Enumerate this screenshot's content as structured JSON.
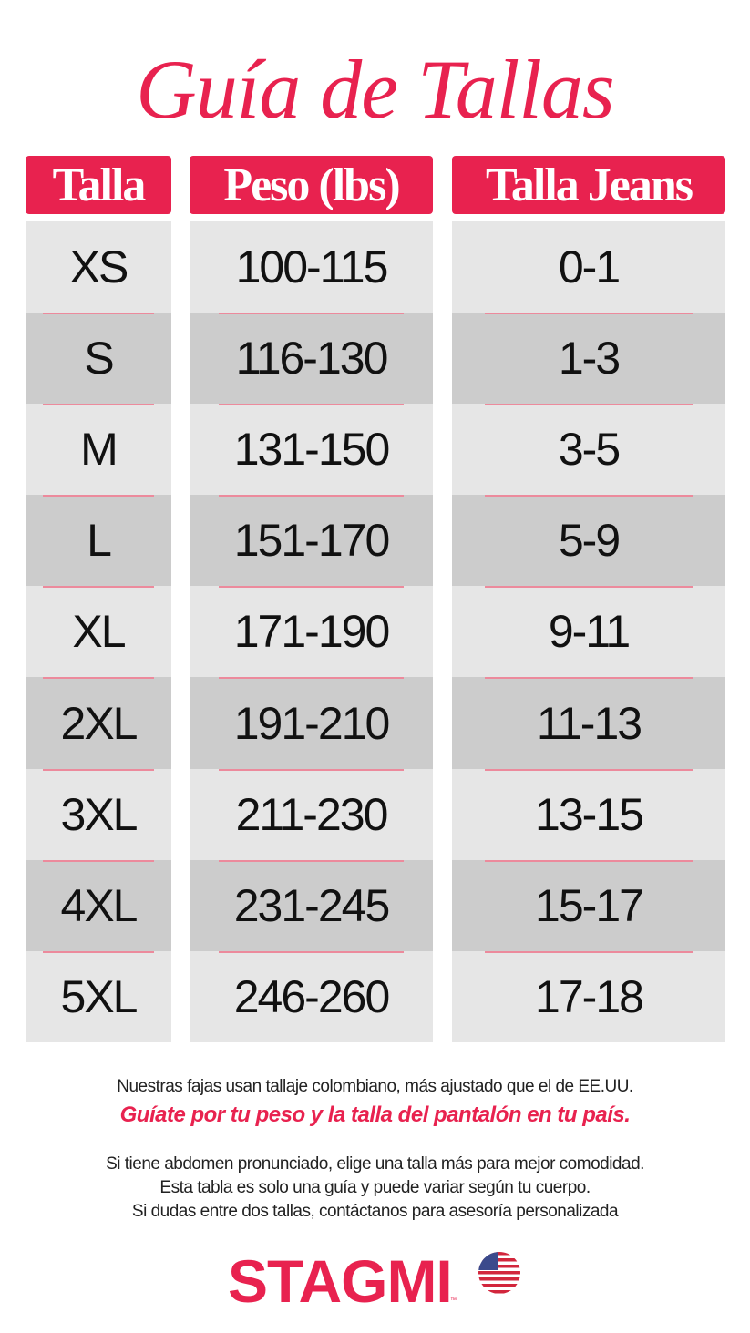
{
  "title": "Guía de Tallas",
  "colors": {
    "brand": "#e8224f",
    "row_light": "#e6e6e6",
    "row_dark": "#cccccc"
  },
  "headers": [
    "Talla",
    "Peso (lbs)",
    "Talla Jeans"
  ],
  "rows": [
    [
      "XS",
      "100-115",
      "0-1"
    ],
    [
      "S",
      "116-130",
      "1-3"
    ],
    [
      "M",
      "131-150",
      "3-5"
    ],
    [
      "L",
      "151-170",
      "5-9"
    ],
    [
      "XL",
      "171-190",
      "9-11"
    ],
    [
      "2XL",
      "191-210",
      "11-13"
    ],
    [
      "3XL",
      "211-230",
      "13-15"
    ],
    [
      "4XL",
      "231-245",
      "15-17"
    ],
    [
      "5XL",
      "246-260",
      "17-18"
    ]
  ],
  "notes": {
    "line1": "Nuestras fajas usan tallaje colombiano, más ajustado que el de EE.UU.",
    "highlight": "Guíate por tu peso y la talla del pantalón en tu país.",
    "line2": "Si tiene abdomen pronunciado, elige una talla más para mejor comodidad.",
    "line3": "Esta tabla es solo una guía y puede variar según tu cuerpo.",
    "line4": "Si dudas entre dos tallas, contáctanos para asesoría personalizada"
  },
  "brand": {
    "name": "STAGMI",
    "tm": "™",
    "icon": "us-flag-icon"
  }
}
